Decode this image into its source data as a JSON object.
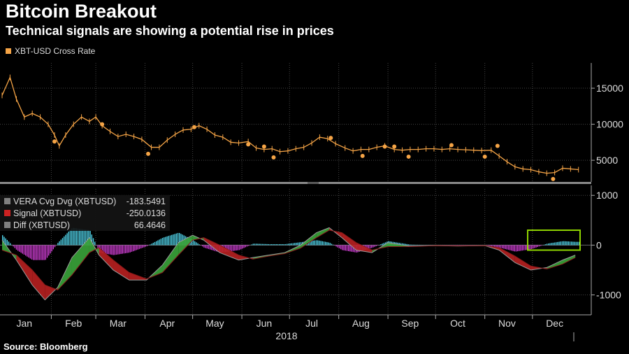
{
  "header": {
    "title": "Bitcoin Breakout",
    "subtitle": "Technical signals are showing a potential rise in prices"
  },
  "footer": {
    "source": "Source: Bloomberg"
  },
  "colors": {
    "background": "#000000",
    "price": "#f5a446",
    "vera_dvg": "#808080",
    "signal": "#cc2222",
    "diff_pos": "#4fd3e8",
    "diff_neg": "#d23fd6",
    "ribbon_up": "#3aa43a",
    "ribbon_down": "#b82020",
    "highlight": "#8fd400"
  },
  "chart_data": [
    {
      "type": "line",
      "panel": "price",
      "legend": [
        {
          "name": "XBT-USD Cross Rate",
          "color": "#f5a446"
        }
      ],
      "yticks": [
        5000,
        10000,
        15000
      ],
      "ylim": [
        2000,
        18500
      ],
      "x": [
        "2018-01-01",
        "2018-01-06",
        "2018-01-10",
        "2018-01-15",
        "2018-01-20",
        "2018-01-25",
        "2018-01-30",
        "2018-02-03",
        "2018-02-06",
        "2018-02-10",
        "2018-02-15",
        "2018-02-20",
        "2018-02-25",
        "2018-03-01",
        "2018-03-05",
        "2018-03-10",
        "2018-03-15",
        "2018-03-20",
        "2018-03-25",
        "2018-03-30",
        "2018-04-05",
        "2018-04-10",
        "2018-04-15",
        "2018-04-20",
        "2018-04-25",
        "2018-04-30",
        "2018-05-05",
        "2018-05-10",
        "2018-05-15",
        "2018-05-20",
        "2018-05-25",
        "2018-05-30",
        "2018-06-05",
        "2018-06-10",
        "2018-06-15",
        "2018-06-20",
        "2018-06-25",
        "2018-06-30",
        "2018-07-05",
        "2018-07-10",
        "2018-07-15",
        "2018-07-20",
        "2018-07-25",
        "2018-07-30",
        "2018-08-05",
        "2018-08-10",
        "2018-08-15",
        "2018-08-20",
        "2018-08-25",
        "2018-08-30",
        "2018-09-05",
        "2018-09-10",
        "2018-09-15",
        "2018-09-20",
        "2018-09-25",
        "2018-09-30",
        "2018-10-05",
        "2018-10-10",
        "2018-10-15",
        "2018-10-20",
        "2018-10-25",
        "2018-10-30",
        "2018-11-05",
        "2018-11-10",
        "2018-11-15",
        "2018-11-20",
        "2018-11-25",
        "2018-11-30",
        "2018-12-05",
        "2018-12-10",
        "2018-12-15",
        "2018-12-20",
        "2018-12-25",
        "2018-12-30"
      ],
      "y": [
        14000,
        16500,
        13500,
        11000,
        11500,
        11000,
        10000,
        8500,
        7000,
        8500,
        10000,
        11000,
        10400,
        11000,
        9800,
        9000,
        8300,
        8600,
        8300,
        7900,
        6800,
        6800,
        7800,
        8600,
        9200,
        9300,
        9800,
        9300,
        8500,
        8200,
        7500,
        7400,
        7600,
        6700,
        6500,
        6600,
        6200,
        6300,
        6600,
        6800,
        7400,
        8200,
        8000,
        7300,
        6700,
        6300,
        6500,
        6500,
        6800,
        7000,
        6500,
        6400,
        6500,
        6500,
        6600,
        6600,
        6500,
        6600,
        6500,
        6450,
        6400,
        6350,
        6400,
        5600,
        4800,
        4100,
        3800,
        3700,
        3400,
        3200,
        3300,
        3900,
        3800,
        3700
      ],
      "markers": {
        "x": [
          "2018-02-03",
          "2018-03-05",
          "2018-04-03",
          "2018-05-02",
          "2018-06-05",
          "2018-06-15",
          "2018-06-21",
          "2018-07-27",
          "2018-08-16",
          "2018-08-30",
          "2018-09-05",
          "2018-09-14",
          "2018-10-11",
          "2018-11-01",
          "2018-11-09",
          "2018-12-14"
        ],
        "y": [
          7600,
          10000,
          5900,
          9600,
          7200,
          6900,
          5400,
          8100,
          5600,
          6900,
          6900,
          5500,
          7100,
          5500,
          7000,
          2400
        ]
      }
    },
    {
      "type": "area",
      "panel": "indicator",
      "yticks": [
        1000,
        0,
        -1000
      ],
      "ylim": [
        -1400,
        1200
      ],
      "legend": [
        {
          "name": "VERA Cvg Dvg (XBTUSD)",
          "value": "-183.5491",
          "color": "#808080"
        },
        {
          "name": "Signal (XBTUSD)",
          "value": "-250.0136",
          "color": "#cc2222"
        },
        {
          "name": "Diff (XBTUSD)",
          "value": "66.4646",
          "color": "#808080"
        }
      ],
      "x": [
        "2018-01-01",
        "2018-01-10",
        "2018-01-20",
        "2018-01-28",
        "2018-02-05",
        "2018-02-14",
        "2018-02-25",
        "2018-03-03",
        "2018-03-12",
        "2018-03-22",
        "2018-04-02",
        "2018-04-12",
        "2018-04-22",
        "2018-05-01",
        "2018-05-08",
        "2018-05-18",
        "2018-05-30",
        "2018-06-08",
        "2018-06-18",
        "2018-06-28",
        "2018-07-08",
        "2018-07-18",
        "2018-07-26",
        "2018-08-03",
        "2018-08-12",
        "2018-08-22",
        "2018-09-01",
        "2018-09-15",
        "2018-10-01",
        "2018-10-15",
        "2018-11-01",
        "2018-11-10",
        "2018-11-20",
        "2018-11-30",
        "2018-12-10",
        "2018-12-20",
        "2018-12-28"
      ],
      "series": [
        {
          "name": "VERA Cvg Dvg (XBTUSD)",
          "values": [
            100,
            -300,
            -800,
            -1100,
            -850,
            -250,
            150,
            -200,
            -500,
            -700,
            -700,
            -400,
            50,
            200,
            100,
            -150,
            -300,
            -250,
            -200,
            -150,
            0,
            250,
            350,
            150,
            -100,
            -150,
            50,
            -20,
            -10,
            -20,
            -10,
            -100,
            -350,
            -500,
            -450,
            -300,
            -200
          ]
        },
        {
          "name": "Signal (XBTUSD)",
          "values": [
            -100,
            -200,
            -500,
            -800,
            -900,
            -600,
            -150,
            -50,
            -300,
            -550,
            -680,
            -550,
            -200,
            100,
            150,
            0,
            -200,
            -280,
            -220,
            -170,
            -60,
            150,
            300,
            250,
            50,
            -100,
            -30,
            -30,
            -10,
            -15,
            -10,
            -50,
            -220,
            -420,
            -480,
            -380,
            -250
          ]
        },
        {
          "name": "Diff (XBTUSD)",
          "values": [
            200,
            -100,
            -300,
            -300,
            50,
            350,
            300,
            -150,
            -200,
            -150,
            -20,
            150,
            250,
            100,
            -50,
            -150,
            -100,
            30,
            20,
            20,
            60,
            100,
            50,
            -100,
            -150,
            -50,
            80,
            10,
            0,
            -5,
            0,
            -50,
            -130,
            -80,
            30,
            80,
            66
          ]
        }
      ],
      "highlight": {
        "x": [
          "2018-11-28",
          "2018-12-31"
        ],
        "y": [
          -100,
          300
        ]
      }
    }
  ],
  "x_axis": {
    "months": [
      "Jan",
      "Feb",
      "Mar",
      "Apr",
      "May",
      "Jun",
      "Jul",
      "Aug",
      "Sep",
      "Oct",
      "Nov",
      "Dec"
    ],
    "year": "2018"
  }
}
